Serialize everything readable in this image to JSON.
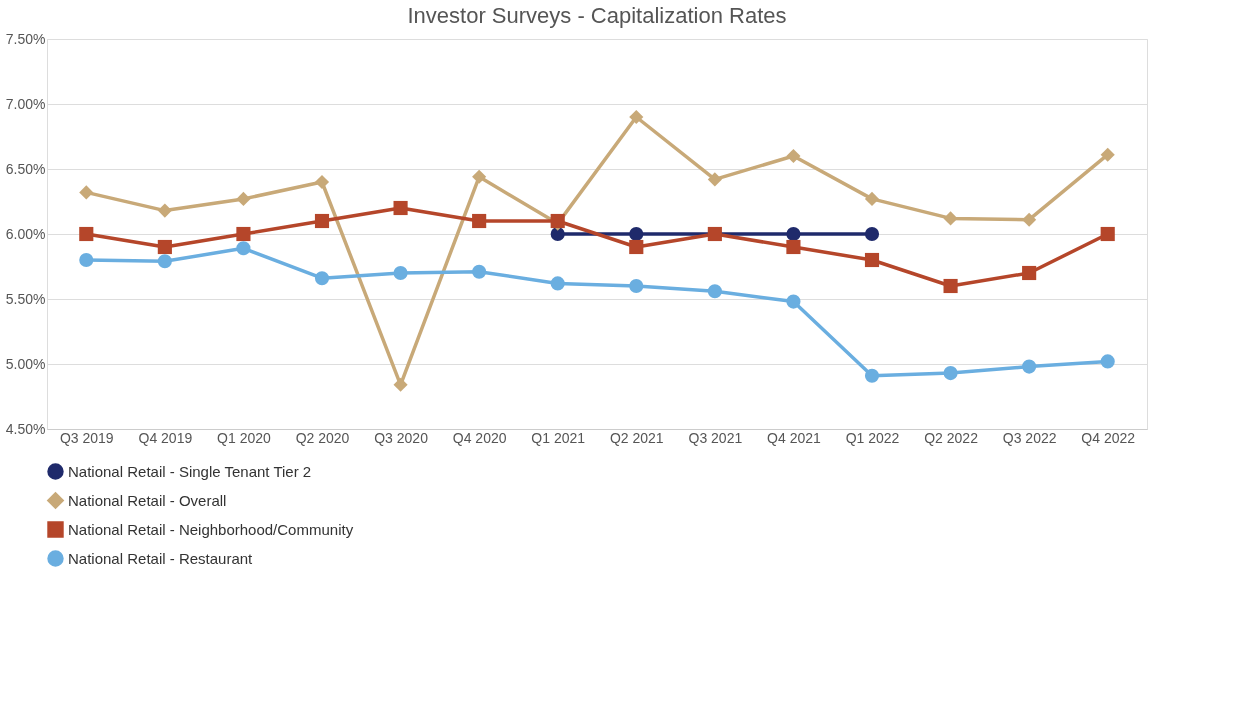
{
  "chart_data": {
    "type": "line",
    "title": "Investor Surveys - Capitalization Rates",
    "categories": [
      "Q3 2019",
      "Q4 2019",
      "Q1 2020",
      "Q2 2020",
      "Q3 2020",
      "Q4 2020",
      "Q1 2021",
      "Q2 2021",
      "Q3 2021",
      "Q4 2021",
      "Q1 2022",
      "Q2 2022",
      "Q3 2022",
      "Q4 2022"
    ],
    "series": [
      {
        "name": "National Retail - Single Tenant Tier 2",
        "color": "#1f2a6b",
        "marker": "circle",
        "values": [
          null,
          null,
          null,
          null,
          null,
          null,
          6.0,
          6.0,
          6.0,
          6.0,
          6.0,
          null,
          null,
          null
        ]
      },
      {
        "name": "National Retail - Overall",
        "color": "#c8a978",
        "marker": "diamond",
        "values": [
          6.32,
          6.18,
          6.27,
          6.4,
          4.84,
          6.44,
          6.08,
          6.9,
          6.42,
          6.6,
          6.27,
          6.12,
          6.11,
          6.61
        ]
      },
      {
        "name": "National Retail - Neighborhood/Community",
        "color": "#b5462a",
        "marker": "square",
        "values": [
          6.0,
          5.9,
          6.0,
          6.1,
          6.2,
          6.1,
          6.1,
          5.9,
          6.0,
          5.9,
          5.8,
          5.6,
          5.7,
          6.0
        ]
      },
      {
        "name": "National Retail - Restaurant",
        "color": "#6aaee0",
        "marker": "circle",
        "values": [
          5.8,
          5.79,
          5.89,
          5.66,
          5.7,
          5.71,
          5.62,
          5.6,
          5.56,
          5.48,
          4.91,
          4.93,
          4.98,
          5.02
        ]
      }
    ],
    "ylim": [
      4.5,
      7.5
    ],
    "yticks": [
      {
        "value": 4.5,
        "label": "4.50%"
      },
      {
        "value": 5.0,
        "label": "5.00%"
      },
      {
        "value": 5.5,
        "label": "5.50%"
      },
      {
        "value": 6.0,
        "label": "6.00%"
      },
      {
        "value": 6.5,
        "label": "6.50%"
      },
      {
        "value": 7.0,
        "label": "7.00%"
      },
      {
        "value": 7.5,
        "label": "7.50%"
      }
    ],
    "grid": "y",
    "legend": "bottom",
    "line_style": "solid"
  }
}
